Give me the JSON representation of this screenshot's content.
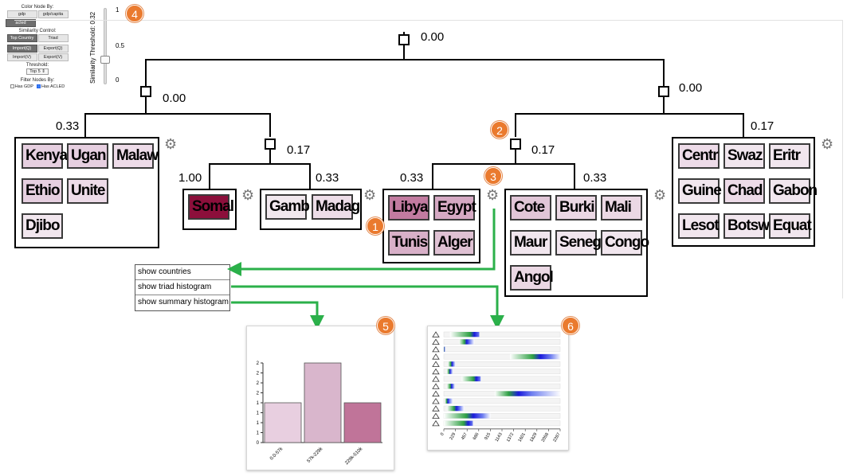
{
  "controls": {
    "color_node_by_title": "Color Node By:",
    "color_buttons": [
      {
        "label": "gdp",
        "active": false
      },
      {
        "label": "gdp/capita",
        "active": false
      },
      {
        "label": "acled",
        "active": true
      }
    ],
    "similarity_title": "Similarity Control:",
    "similarity_buttons": [
      {
        "label": "Top Country",
        "active": true
      },
      {
        "label": "Triad",
        "active": false
      }
    ],
    "io_buttons": [
      {
        "label": "Import(Q)",
        "active": true
      },
      {
        "label": "Export(Q)",
        "active": false
      },
      {
        "label": "Import(V)",
        "active": false
      },
      {
        "label": "Export(V)",
        "active": false
      }
    ],
    "threshold_title": "Threshold:",
    "threshold_value": "Top 5",
    "filter_title": "Filter Nodes By:",
    "filters": [
      {
        "label": "Has GDP",
        "checked": false
      },
      {
        "label": "Has ACLED",
        "checked": true
      }
    ]
  },
  "slider": {
    "label": "Similarity Threshold: 0.32",
    "ticks": [
      "1",
      "0.5",
      "0"
    ],
    "value": 0.32
  },
  "badges": [
    "1",
    "2",
    "3",
    "4",
    "5",
    "6"
  ],
  "tree": {
    "root_value": "0.00",
    "left_value": "0.00",
    "right_value": "0.00",
    "mid_left_value": "0.17",
    "mid_right_value": "0.17",
    "clusters": [
      {
        "name": "cluster-a",
        "value": "0.33",
        "countries": [
          {
            "label": "Kenya",
            "color": "#e6cfe0"
          },
          {
            "label": "Ugan",
            "color": "#e6cfe0"
          },
          {
            "label": "Malaw",
            "color": "#eddbe8"
          },
          {
            "label": "Ethio",
            "color": "#e6cfe0"
          },
          {
            "label": "Unite",
            "color": "#eddbe8"
          },
          {
            "label": "Djibo",
            "color": "#f1e6ee"
          }
        ]
      },
      {
        "name": "cluster-b",
        "value": "1.00",
        "countries": [
          {
            "label": "Somal",
            "color": "#8c0f3b"
          }
        ]
      },
      {
        "name": "cluster-c",
        "value": "0.33",
        "countries": [
          {
            "label": "Gamb",
            "color": "#f1e8ee"
          },
          {
            "label": "Madag",
            "color": "#eddde8"
          }
        ]
      },
      {
        "name": "cluster-d",
        "value": "0.33",
        "countries": [
          {
            "label": "Libya",
            "color": "#c27ba0"
          },
          {
            "label": "Egypt",
            "color": "#d5a9c3"
          },
          {
            "label": "Tunis",
            "color": "#d8b0c8"
          },
          {
            "label": "Alger",
            "color": "#dfc1d3"
          }
        ]
      },
      {
        "name": "cluster-e",
        "value": "0.33",
        "countries": [
          {
            "label": "Cote",
            "color": "#e1c6d7"
          },
          {
            "label": "Burki",
            "color": "#ebd8e4"
          },
          {
            "label": "Mali",
            "color": "#ebd8e4"
          },
          {
            "label": "Maur",
            "color": "#f1e6ee"
          },
          {
            "label": "Seneg",
            "color": "#f1e6ee"
          },
          {
            "label": "Congo",
            "color": "#f1e6ee"
          },
          {
            "label": "Angol",
            "color": "#ebd8e4"
          }
        ]
      },
      {
        "name": "cluster-f",
        "value": "0.17",
        "countries": [
          {
            "label": "Centr",
            "color": "#eddbe8"
          },
          {
            "label": "Swaz",
            "color": "#f1e6ee"
          },
          {
            "label": "Eritr",
            "color": "#f1e6ee"
          },
          {
            "label": "Guine",
            "color": "#f1e6ee"
          },
          {
            "label": "Chad",
            "color": "#eddbe8"
          },
          {
            "label": "Gabon",
            "color": "#f1e6ee"
          },
          {
            "label": "Lesot",
            "color": "#f1e6ee"
          },
          {
            "label": "Botsw",
            "color": "#f1e6ee"
          },
          {
            "label": "Equat",
            "color": "#f1e6ee"
          }
        ]
      }
    ]
  },
  "menu": {
    "items": [
      "show countries",
      "show triad histogram",
      "show summary histogram"
    ]
  },
  "colors": {
    "arrow": "#2bb04a",
    "badge": "#ea7a2e"
  },
  "chart_data": [
    {
      "type": "bar",
      "categories": [
        "0.0-57k",
        "57k-229k",
        "229k-510k"
      ],
      "values": [
        1,
        2,
        1
      ],
      "colors": [
        "#e8cfe0",
        "#d9b6cc",
        "#c07499"
      ],
      "ylim": [
        0,
        2
      ],
      "yticks": [
        "0",
        "1",
        "1",
        "1",
        "1",
        "2",
        "2",
        "2",
        "2"
      ]
    },
    {
      "type": "heatmap",
      "xticks": [
        "0",
        "229",
        "457",
        "686",
        "915",
        "1143",
        "1372",
        "1601",
        "1829",
        "2058",
        "2287"
      ],
      "xlim": [
        0,
        2287
      ],
      "rows": [
        {
          "start": 120,
          "end": 700,
          "peak": 600
        },
        {
          "start": 300,
          "end": 600,
          "peak": 450
        },
        {
          "start": 0,
          "end": 30,
          "peak": 10
        },
        {
          "start": 1300,
          "end": 2300,
          "peak": 1900
        },
        {
          "start": 80,
          "end": 230,
          "peak": 160
        },
        {
          "start": 60,
          "end": 180,
          "peak": 120
        },
        {
          "start": 350,
          "end": 730,
          "peak": 640
        },
        {
          "start": 60,
          "end": 220,
          "peak": 150
        },
        {
          "start": 1000,
          "end": 2300,
          "peak": 1470
        },
        {
          "start": 20,
          "end": 180,
          "peak": 80
        },
        {
          "start": 60,
          "end": 400,
          "peak": 250
        },
        {
          "start": 0,
          "end": 920,
          "peak": 580
        },
        {
          "start": 0,
          "end": 570,
          "peak": 480
        }
      ]
    }
  ]
}
